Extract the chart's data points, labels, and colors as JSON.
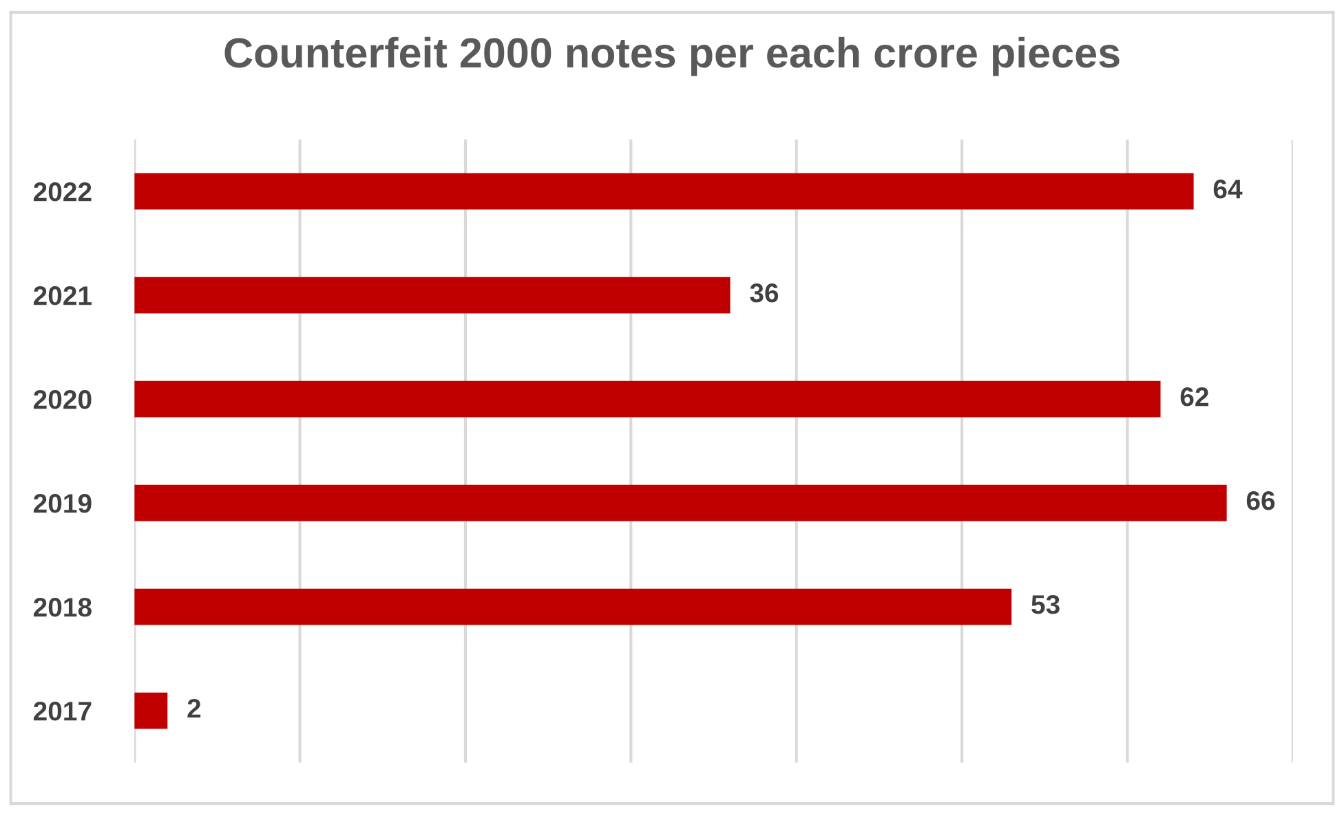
{
  "chart_data": {
    "type": "bar",
    "orientation": "horizontal",
    "title": "Counterfeit 2000 notes per each crore pieces",
    "categories": [
      "2022",
      "2021",
      "2020",
      "2019",
      "2018",
      "2017"
    ],
    "values": [
      64,
      36,
      62,
      66,
      53,
      2
    ],
    "color": "#c00000",
    "xlim": [
      0,
      70
    ],
    "xticks": [
      {
        "value": 0,
        "label": null
      },
      {
        "value": 10,
        "label": null
      },
      {
        "value": 20,
        "label": null
      },
      {
        "value": 30,
        "label": null
      },
      {
        "value": 40,
        "label": null
      },
      {
        "value": 50,
        "label": null
      },
      {
        "value": 60,
        "label": null
      },
      {
        "value": 70,
        "label": null
      }
    ],
    "grid": "x",
    "tick_labels": "y",
    "data_labels": true,
    "legend": false
  }
}
